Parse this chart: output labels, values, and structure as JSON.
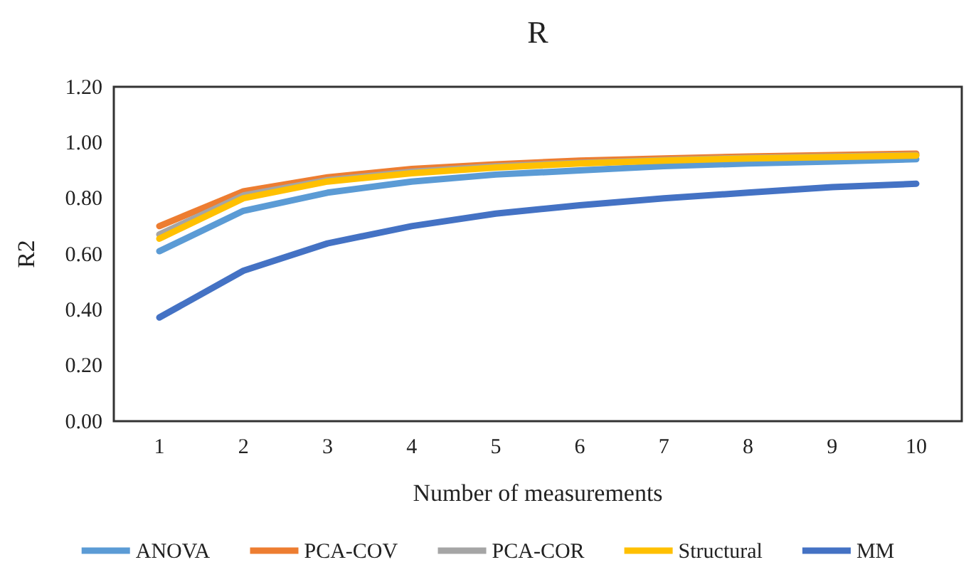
{
  "chart_data": {
    "type": "line",
    "title": "R",
    "xlabel": "Number of measurements",
    "ylabel": "R2",
    "categories": [
      "1",
      "2",
      "3",
      "4",
      "5",
      "6",
      "7",
      "8",
      "9",
      "10"
    ],
    "ylim": [
      0,
      1.2
    ],
    "yticks": [
      {
        "value": 0,
        "label": "0.00"
      },
      {
        "value": 0.2,
        "label": "0.20"
      },
      {
        "value": 0.4,
        "label": "0.40"
      },
      {
        "value": 0.6,
        "label": "0.60"
      },
      {
        "value": 0.8,
        "label": "0.80"
      },
      {
        "value": 1,
        "label": "1.00"
      },
      {
        "value": 1.2,
        "label": "1.20"
      }
    ],
    "grid": false,
    "legend": "bottom",
    "marker": "none",
    "line_style": "solid",
    "series": [
      {
        "name": "ANOVA",
        "color": "#5b9bd5",
        "values": [
          0.61,
          0.755,
          0.82,
          0.86,
          0.885,
          0.9,
          0.915,
          0.925,
          0.932,
          0.94
        ]
      },
      {
        "name": "PCA-COV",
        "color": "#ed7d31",
        "values": [
          0.7,
          0.825,
          0.875,
          0.905,
          0.922,
          0.935,
          0.943,
          0.95,
          0.955,
          0.96
        ]
      },
      {
        "name": "PCA-COR",
        "color": "#a5a5a5",
        "values": [
          0.67,
          0.81,
          0.865,
          0.895,
          0.915,
          0.927,
          0.937,
          0.945,
          0.95,
          0.955
        ]
      },
      {
        "name": "Structural",
        "color": "#ffc000",
        "values": [
          0.655,
          0.8,
          0.86,
          0.89,
          0.91,
          0.925,
          0.935,
          0.943,
          0.948,
          0.953
        ]
      },
      {
        "name": "MM",
        "color": "#4472c4",
        "values": [
          0.372,
          0.54,
          0.638,
          0.7,
          0.745,
          0.775,
          0.8,
          0.82,
          0.84,
          0.852
        ]
      }
    ]
  }
}
